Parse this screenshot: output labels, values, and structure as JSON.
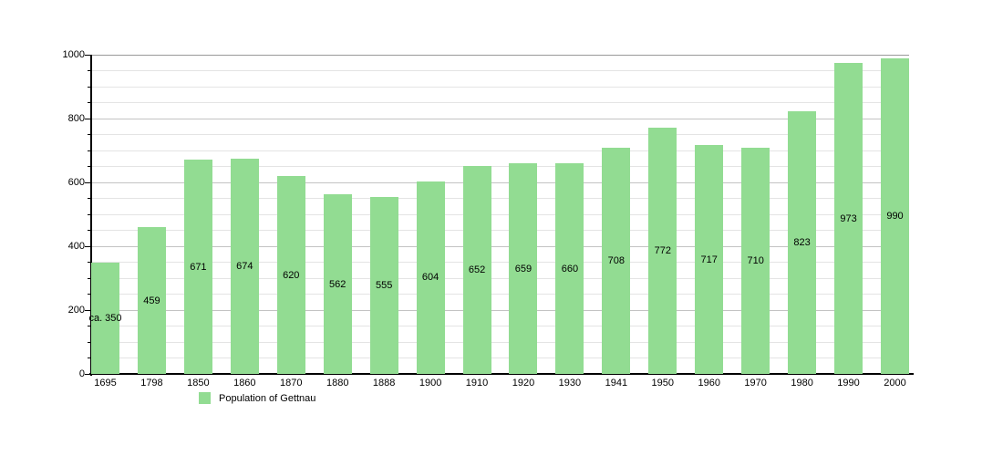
{
  "chart_data": {
    "type": "bar",
    "title": "",
    "legend_label": "Population of Gettnau",
    "categories": [
      "1695",
      "1798",
      "1850",
      "1860",
      "1870",
      "1880",
      "1888",
      "1900",
      "1910",
      "1920",
      "1930",
      "1941",
      "1950",
      "1960",
      "1970",
      "1980",
      "1990",
      "2000"
    ],
    "values": [
      350,
      459,
      671,
      674,
      620,
      562,
      555,
      604,
      652,
      659,
      660,
      708,
      772,
      717,
      710,
      823,
      973,
      990
    ],
    "bar_labels": [
      "ca. 350",
      "459",
      "671",
      "674",
      "620",
      "562",
      "555",
      "604",
      "652",
      "659",
      "660",
      "708",
      "772",
      "717",
      "710",
      "823",
      "973",
      "990"
    ],
    "xlabel": "",
    "ylabel": "",
    "ylim": [
      0,
      1000
    ],
    "y_major_ticks": [
      0,
      200,
      400,
      600,
      800,
      1000
    ],
    "y_minor_step": 50,
    "grid": "on",
    "legend_position": "bottom-left",
    "colors": {
      "bar": "#92dc92",
      "grid_minor": "#e4e4e4",
      "grid_major": "#c3c3c3",
      "grid_top": "#999999",
      "axis": "#000000",
      "text": "#000000"
    }
  }
}
